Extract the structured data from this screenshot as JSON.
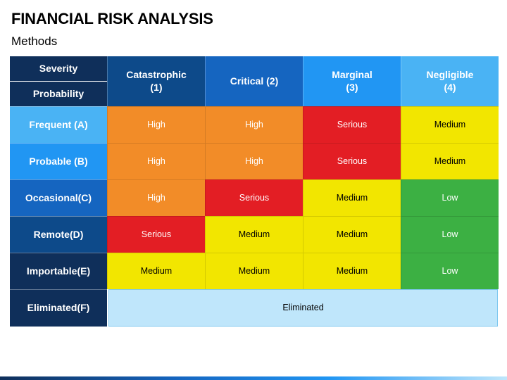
{
  "title": "FINANCIAL RISK ANALYSIS",
  "subtitle": "Methods",
  "matrix": {
    "corner": {
      "severity": "Severity",
      "probability": "Probability"
    },
    "columns": [
      {
        "label": "Catastrophic\n(1)",
        "color": "#0d4a8a"
      },
      {
        "label": "Critical (2)",
        "color": "#1565c0"
      },
      {
        "label": "Marginal\n(3)",
        "color": "#2196f3"
      },
      {
        "label": "Negligible\n(4)",
        "color": "#4ab3f4"
      }
    ],
    "rows": [
      {
        "label": "Frequent (A)",
        "color": "#4ab3f4",
        "cells": [
          "High",
          "High",
          "Serious",
          "Medium"
        ]
      },
      {
        "label": "Probable (B)",
        "color": "#2196f3",
        "cells": [
          "High",
          "High",
          "Serious",
          "Medium"
        ]
      },
      {
        "label": "Occasional(C)",
        "color": "#1565c0",
        "cells": [
          "High",
          "Serious",
          "Medium",
          "Low"
        ]
      },
      {
        "label": "Remote(D)",
        "color": "#0d4a8a",
        "cells": [
          "Serious",
          "Medium",
          "Medium",
          "Low"
        ]
      },
      {
        "label": "Importable(E)",
        "color": "#0f2f5a",
        "cells": [
          "Medium",
          "Medium",
          "Medium",
          "Low"
        ]
      }
    ],
    "eliminated": {
      "label": "Eliminated(F)",
      "color": "#0f2f5a",
      "value": "Eliminated"
    },
    "level_colors": {
      "High": "#f28c28",
      "Serious": "#e31e24",
      "Medium": "#f2e600",
      "Low": "#3cb043"
    }
  }
}
